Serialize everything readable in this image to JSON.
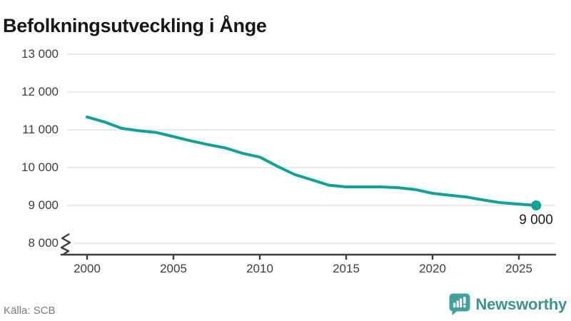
{
  "header": {
    "title": "Befolkningsutveckling i Ånge"
  },
  "chart_data": {
    "type": "line",
    "title": "Befolkningsutveckling i Ånge",
    "x": [
      2000,
      2001,
      2002,
      2003,
      2004,
      2005,
      2006,
      2007,
      2008,
      2009,
      2010,
      2011,
      2012,
      2013,
      2014,
      2015,
      2016,
      2017,
      2018,
      2019,
      2020,
      2021,
      2022,
      2023,
      2024,
      2025,
      2026
    ],
    "values": [
      11340,
      11210,
      11040,
      10975,
      10930,
      10820,
      10710,
      10610,
      10520,
      10380,
      10280,
      10040,
      9820,
      9680,
      9535,
      9490,
      9490,
      9490,
      9470,
      9420,
      9320,
      9270,
      9220,
      9140,
      9070,
      9035,
      9000
    ],
    "end_label": "9 000",
    "y_ticks": [
      8000,
      9000,
      10000,
      11000,
      12000,
      13000
    ],
    "y_tick_labels": [
      "8 000",
      "9 000",
      "10 000",
      "11 000",
      "12 000",
      "13 000"
    ],
    "x_ticks": [
      2000,
      2005,
      2010,
      2015,
      2020,
      2025
    ],
    "x_tick_labels": [
      "2000",
      "2005",
      "2010",
      "2015",
      "2020",
      "2025"
    ],
    "ylim": [
      8000,
      13000
    ],
    "y_axis_break": true,
    "grid": "horizontal",
    "legend": "none",
    "line_color": "#12a195",
    "marker": "dot-on-last-point"
  },
  "footer": {
    "source": "Källa: SCB",
    "brand_name": "Newsworthy",
    "brand_color": "#3e948d",
    "brand_icon": "newsworthy-speech-bubble-barchart-icon",
    "brand_icon_color": "#44a19a"
  }
}
